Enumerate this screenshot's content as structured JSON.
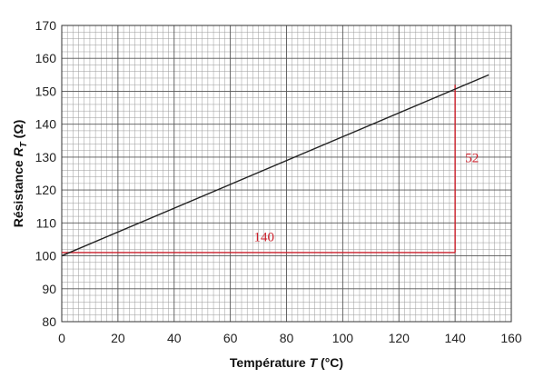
{
  "chart_data": {
    "type": "line",
    "title": "",
    "xlabel": "Température T (°C)",
    "xlabel_parts": {
      "pre": "Température ",
      "var": "T",
      "post": " (°C)"
    },
    "ylabel": "Résistance R_T (Ω)",
    "ylabel_parts": {
      "pre": "Résistance ",
      "var": "R",
      "sub": "T",
      "post": " (Ω)"
    },
    "xlim": [
      0,
      160
    ],
    "ylim": [
      80,
      170
    ],
    "x_ticks": [
      0,
      20,
      40,
      60,
      80,
      100,
      120,
      140,
      160
    ],
    "y_ticks": [
      80,
      90,
      100,
      110,
      120,
      130,
      140,
      150,
      160,
      170
    ],
    "x_minor_step": 2,
    "y_minor_step": 2,
    "grid": true,
    "series": [
      {
        "values": [
          [
            0,
            100
          ],
          [
            152,
            155
          ]
        ],
        "color": "#222222"
      }
    ],
    "annotations": [
      {
        "type": "segment",
        "from": [
          0,
          101
        ],
        "to": [
          140,
          101
        ],
        "color": "#cc1f2a"
      },
      {
        "type": "segment",
        "from": [
          140,
          101
        ],
        "to": [
          140,
          152
        ],
        "color": "#cc1f2a"
      },
      {
        "type": "label",
        "text": "140",
        "at": [
          72,
          104.5
        ],
        "color": "#cc1f2a"
      },
      {
        "type": "label",
        "text": "52",
        "at": [
          146,
          128.5
        ],
        "color": "#cc1f2a"
      }
    ]
  }
}
